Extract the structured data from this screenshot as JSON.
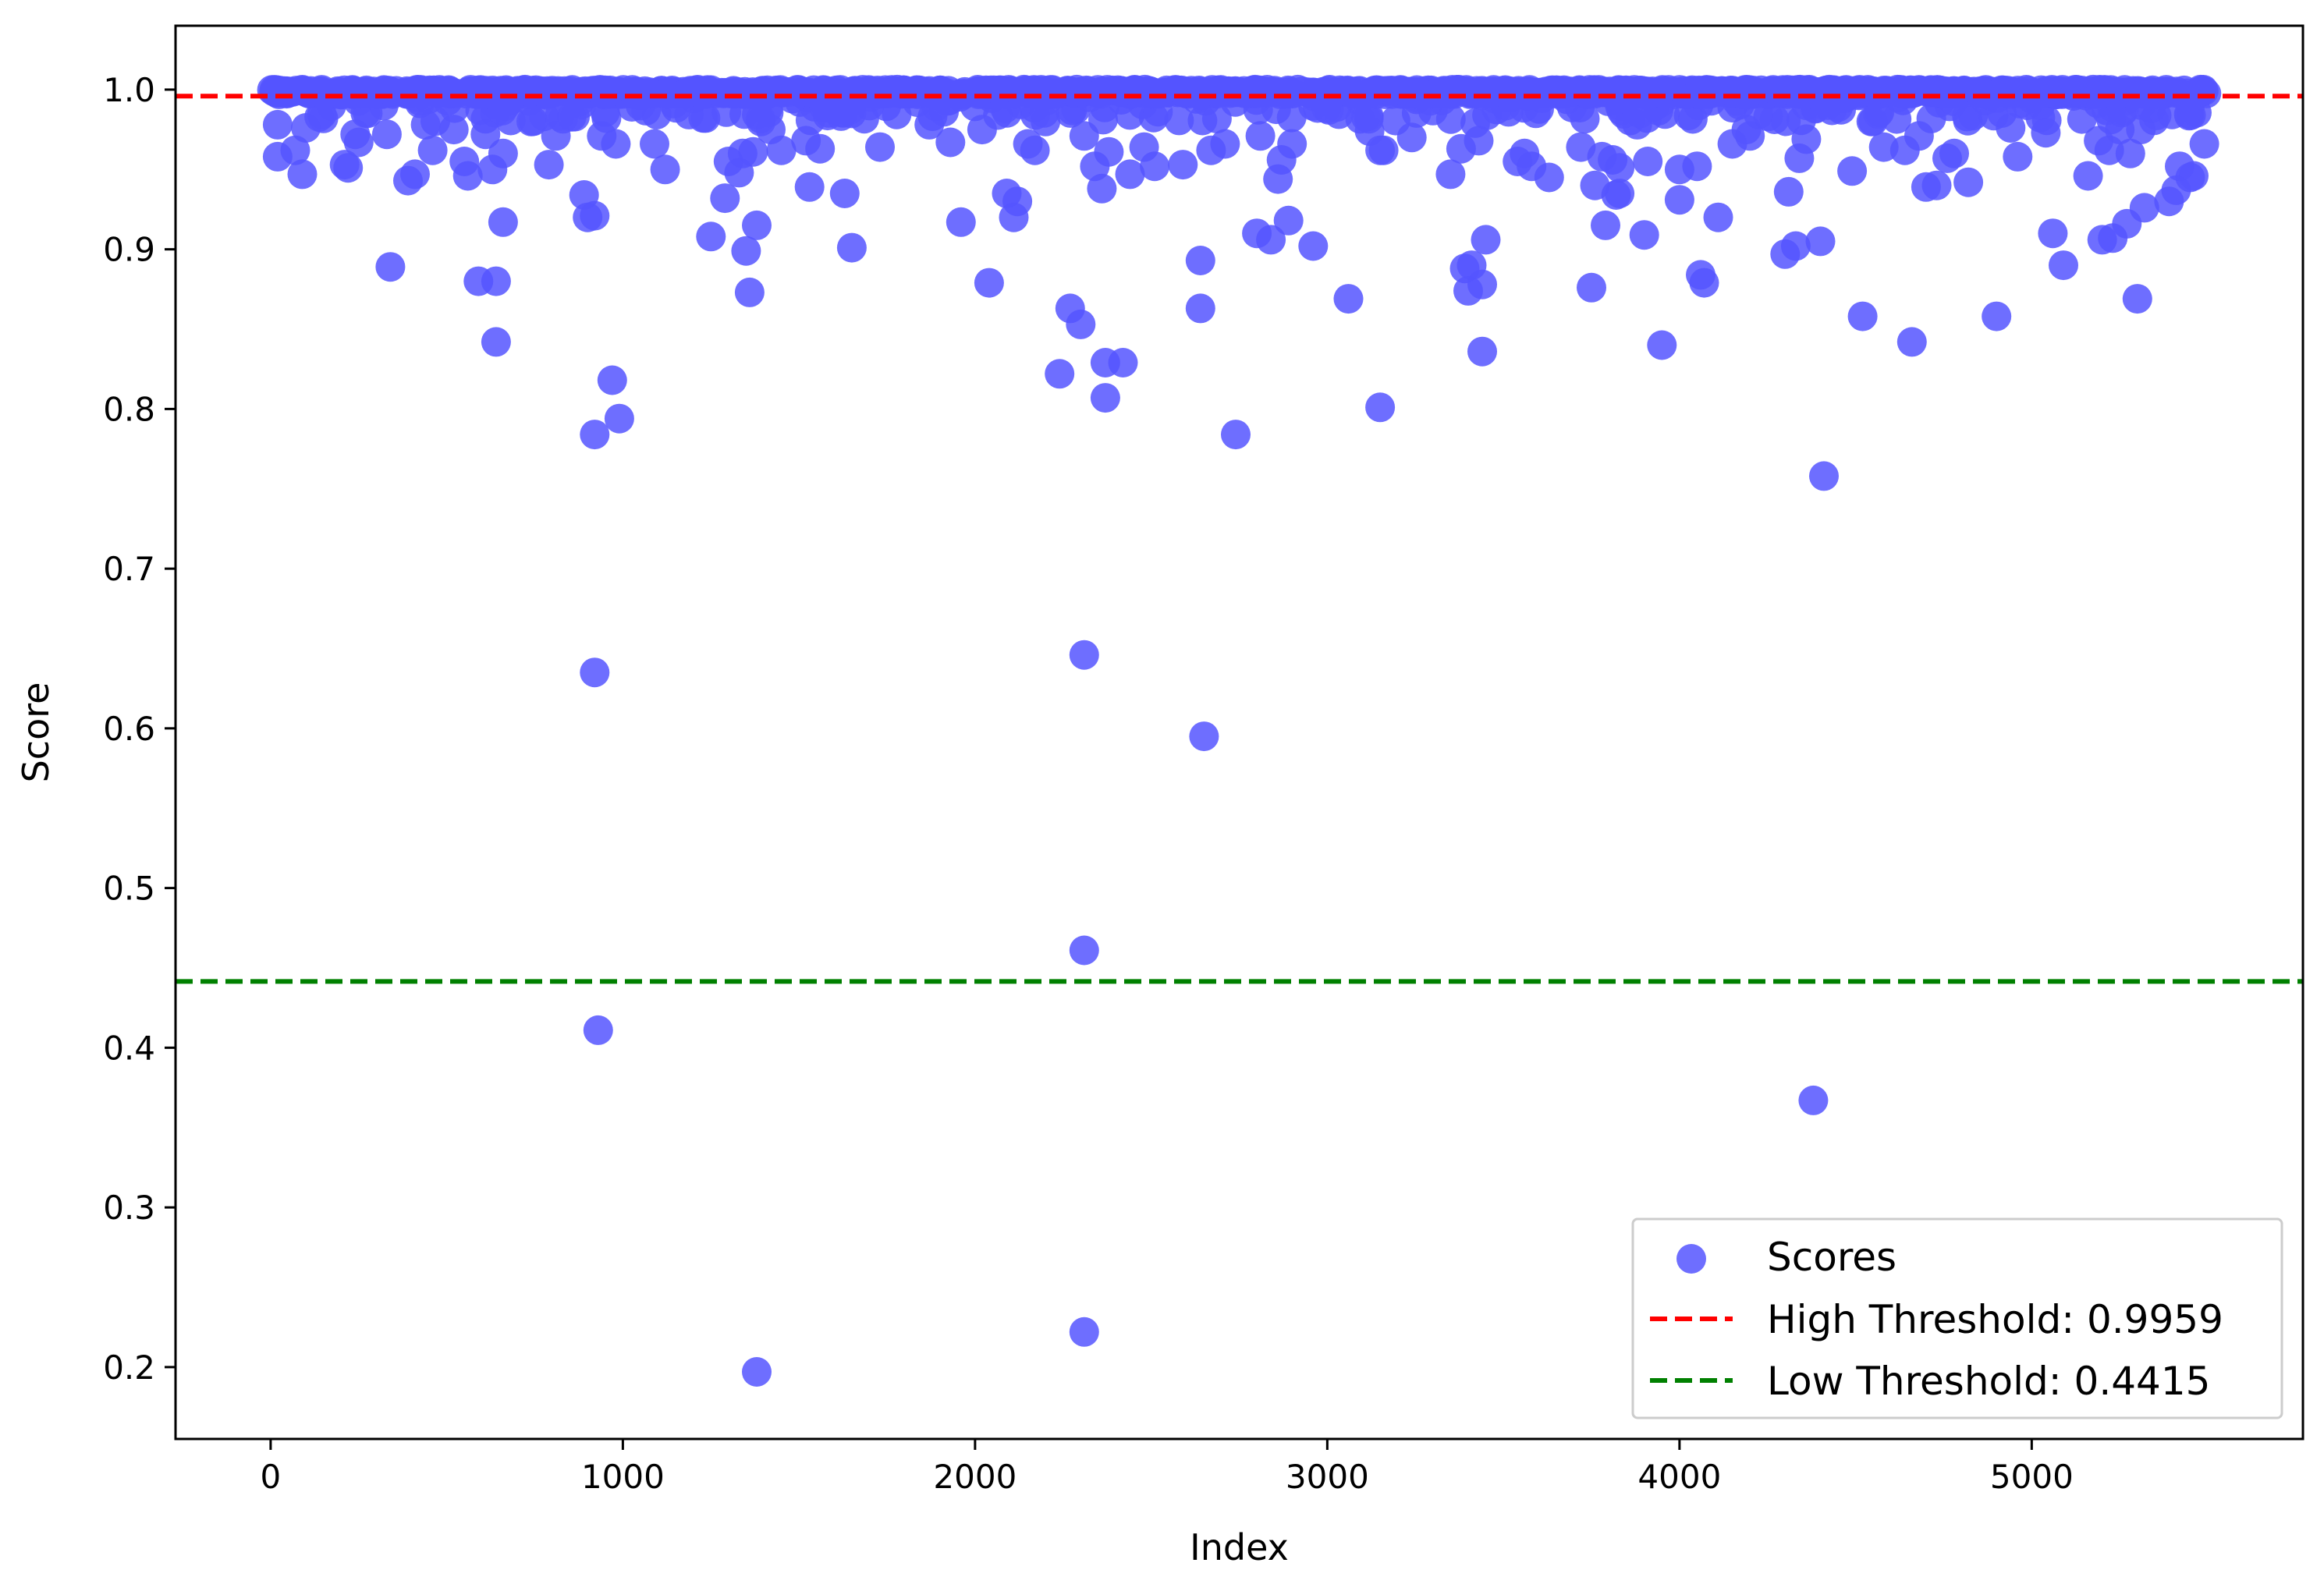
{
  "chart_data": {
    "type": "scatter",
    "title": "",
    "xlabel": "Index",
    "ylabel": "Score",
    "xlim": [
      -270,
      5770
    ],
    "ylim": [
      0.155,
      1.04
    ],
    "xticks": [
      0,
      1000,
      2000,
      3000,
      4000,
      5000
    ],
    "xtick_labels": [
      "0",
      "1000",
      "2000",
      "3000",
      "4000",
      "5000"
    ],
    "yticks": [
      0.2,
      0.3,
      0.4,
      0.5,
      0.6,
      0.7,
      0.8,
      0.9,
      1.0
    ],
    "ytick_labels": [
      "0.2",
      "0.3",
      "0.4",
      "0.5",
      "0.6",
      "0.7",
      "0.8",
      "0.9",
      "1.0"
    ],
    "grid": false,
    "legend_position": "lower-right",
    "n_points": 5500,
    "series": [
      {
        "name": "Scores",
        "color": "#5555ff",
        "points_below_0_99": [
          [
            20,
            0.978
          ],
          [
            20,
            0.958
          ],
          [
            70,
            0.962
          ],
          [
            90,
            0.947
          ],
          [
            100,
            0.976
          ],
          [
            150,
            0.982
          ],
          [
            210,
            0.953
          ],
          [
            220,
            0.951
          ],
          [
            240,
            0.972
          ],
          [
            250,
            0.967
          ],
          [
            330,
            0.972
          ],
          [
            340,
            0.889
          ],
          [
            390,
            0.943
          ],
          [
            410,
            0.947
          ],
          [
            440,
            0.978
          ],
          [
            460,
            0.962
          ],
          [
            520,
            0.975
          ],
          [
            550,
            0.955
          ],
          [
            560,
            0.946
          ],
          [
            590,
            0.88
          ],
          [
            610,
            0.972
          ],
          [
            630,
            0.95
          ],
          [
            640,
            0.88
          ],
          [
            640,
            0.842
          ],
          [
            660,
            0.917
          ],
          [
            660,
            0.96
          ],
          [
            740,
            0.98
          ],
          [
            790,
            0.953
          ],
          [
            810,
            0.971
          ],
          [
            890,
            0.934
          ],
          [
            900,
            0.92
          ],
          [
            920,
            0.921
          ],
          [
            920,
            0.784
          ],
          [
            920,
            0.635
          ],
          [
            930,
            0.411
          ],
          [
            940,
            0.971
          ],
          [
            970,
            0.818
          ],
          [
            980,
            0.966
          ],
          [
            990,
            0.794
          ],
          [
            1050,
            0.99
          ],
          [
            1090,
            0.966
          ],
          [
            1120,
            0.95
          ],
          [
            1250,
            0.908
          ],
          [
            1290,
            0.932
          ],
          [
            1300,
            0.955
          ],
          [
            1330,
            0.948
          ],
          [
            1340,
            0.96
          ],
          [
            1350,
            0.899
          ],
          [
            1360,
            0.873
          ],
          [
            1370,
            0.961
          ],
          [
            1380,
            0.915
          ],
          [
            1380,
            0.197
          ],
          [
            1420,
            0.975
          ],
          [
            1450,
            0.962
          ],
          [
            1520,
            0.968
          ],
          [
            1530,
            0.939
          ],
          [
            1560,
            0.963
          ],
          [
            1630,
            0.935
          ],
          [
            1650,
            0.901
          ],
          [
            1700,
            0.99
          ],
          [
            1730,
            0.964
          ],
          [
            1870,
            0.978
          ],
          [
            1930,
            0.967
          ],
          [
            1960,
            0.917
          ],
          [
            2020,
            0.975
          ],
          [
            2040,
            0.879
          ],
          [
            2090,
            0.935
          ],
          [
            2110,
            0.92
          ],
          [
            2120,
            0.93
          ],
          [
            2150,
            0.966
          ],
          [
            2170,
            0.962
          ],
          [
            2200,
            0.98
          ],
          [
            2240,
            0.822
          ],
          [
            2270,
            0.863
          ],
          [
            2300,
            0.853
          ],
          [
            2310,
            0.971
          ],
          [
            2310,
            0.646
          ],
          [
            2310,
            0.461
          ],
          [
            2310,
            0.222
          ],
          [
            2340,
            0.952
          ],
          [
            2360,
            0.938
          ],
          [
            2370,
            0.829
          ],
          [
            2370,
            0.807
          ],
          [
            2380,
            0.961
          ],
          [
            2420,
            0.829
          ],
          [
            2440,
            0.947
          ],
          [
            2480,
            0.964
          ],
          [
            2510,
            0.952
          ],
          [
            2590,
            0.953
          ],
          [
            2640,
            0.893
          ],
          [
            2640,
            0.863
          ],
          [
            2650,
            0.595
          ],
          [
            2670,
            0.962
          ],
          [
            2710,
            0.966
          ],
          [
            2740,
            0.784
          ],
          [
            2800,
            0.91
          ],
          [
            2810,
            0.971
          ],
          [
            2840,
            0.906
          ],
          [
            2860,
            0.944
          ],
          [
            2870,
            0.956
          ],
          [
            2890,
            0.918
          ],
          [
            2900,
            0.966
          ],
          [
            2960,
            0.902
          ],
          [
            3060,
            0.869
          ],
          [
            3120,
            0.974
          ],
          [
            3150,
            0.962
          ],
          [
            3150,
            0.801
          ],
          [
            3160,
            0.962
          ],
          [
            3240,
            0.97
          ],
          [
            3350,
            0.947
          ],
          [
            3380,
            0.963
          ],
          [
            3390,
            0.888
          ],
          [
            3400,
            0.874
          ],
          [
            3410,
            0.89
          ],
          [
            3420,
            0.979
          ],
          [
            3430,
            0.968
          ],
          [
            3440,
            0.878
          ],
          [
            3440,
            0.836
          ],
          [
            3450,
            0.906
          ],
          [
            3540,
            0.955
          ],
          [
            3560,
            0.96
          ],
          [
            3580,
            0.952
          ],
          [
            3630,
            0.945
          ],
          [
            3720,
            0.964
          ],
          [
            3750,
            0.876
          ],
          [
            3760,
            0.94
          ],
          [
            3780,
            0.958
          ],
          [
            3790,
            0.915
          ],
          [
            3810,
            0.956
          ],
          [
            3820,
            0.934
          ],
          [
            3830,
            0.935
          ],
          [
            3830,
            0.951
          ],
          [
            3880,
            0.978
          ],
          [
            3900,
            0.909
          ],
          [
            3910,
            0.955
          ],
          [
            3950,
            0.84
          ],
          [
            4000,
            0.95
          ],
          [
            4000,
            0.931
          ],
          [
            4050,
            0.952
          ],
          [
            4060,
            0.884
          ],
          [
            4070,
            0.879
          ],
          [
            4110,
            0.92
          ],
          [
            4150,
            0.966
          ],
          [
            4190,
            0.975
          ],
          [
            4200,
            0.971
          ],
          [
            4300,
            0.897
          ],
          [
            4310,
            0.936
          ],
          [
            4330,
            0.902
          ],
          [
            4340,
            0.957
          ],
          [
            4360,
            0.969
          ],
          [
            4380,
            0.367
          ],
          [
            4400,
            0.905
          ],
          [
            4410,
            0.758
          ],
          [
            4490,
            0.949
          ],
          [
            4520,
            0.858
          ],
          [
            4580,
            0.964
          ],
          [
            4640,
            0.962
          ],
          [
            4660,
            0.842
          ],
          [
            4680,
            0.971
          ],
          [
            4700,
            0.939
          ],
          [
            4730,
            0.94
          ],
          [
            4760,
            0.957
          ],
          [
            4780,
            0.96
          ],
          [
            4820,
            0.942
          ],
          [
            4900,
            0.858
          ],
          [
            4940,
            0.976
          ],
          [
            4960,
            0.958
          ],
          [
            5040,
            0.973
          ],
          [
            5060,
            0.91
          ],
          [
            5090,
            0.89
          ],
          [
            5160,
            0.946
          ],
          [
            5190,
            0.968
          ],
          [
            5200,
            0.906
          ],
          [
            5220,
            0.962
          ],
          [
            5230,
            0.907
          ],
          [
            5250,
            0.975
          ],
          [
            5270,
            0.916
          ],
          [
            5280,
            0.96
          ],
          [
            5300,
            0.869
          ],
          [
            5310,
            0.975
          ],
          [
            5320,
            0.926
          ],
          [
            5390,
            0.93
          ],
          [
            5410,
            0.937
          ],
          [
            5420,
            0.952
          ],
          [
            5450,
            0.945
          ],
          [
            5460,
            0.946
          ],
          [
            5490,
            0.966
          ]
        ]
      },
      {
        "name": "High Threshold: 0.9959",
        "color": "#ff0000",
        "kind": "hline",
        "y": 0.9959
      },
      {
        "name": "Low Threshold: 0.4415",
        "color": "#008000",
        "kind": "hline",
        "y": 0.4415
      }
    ]
  }
}
